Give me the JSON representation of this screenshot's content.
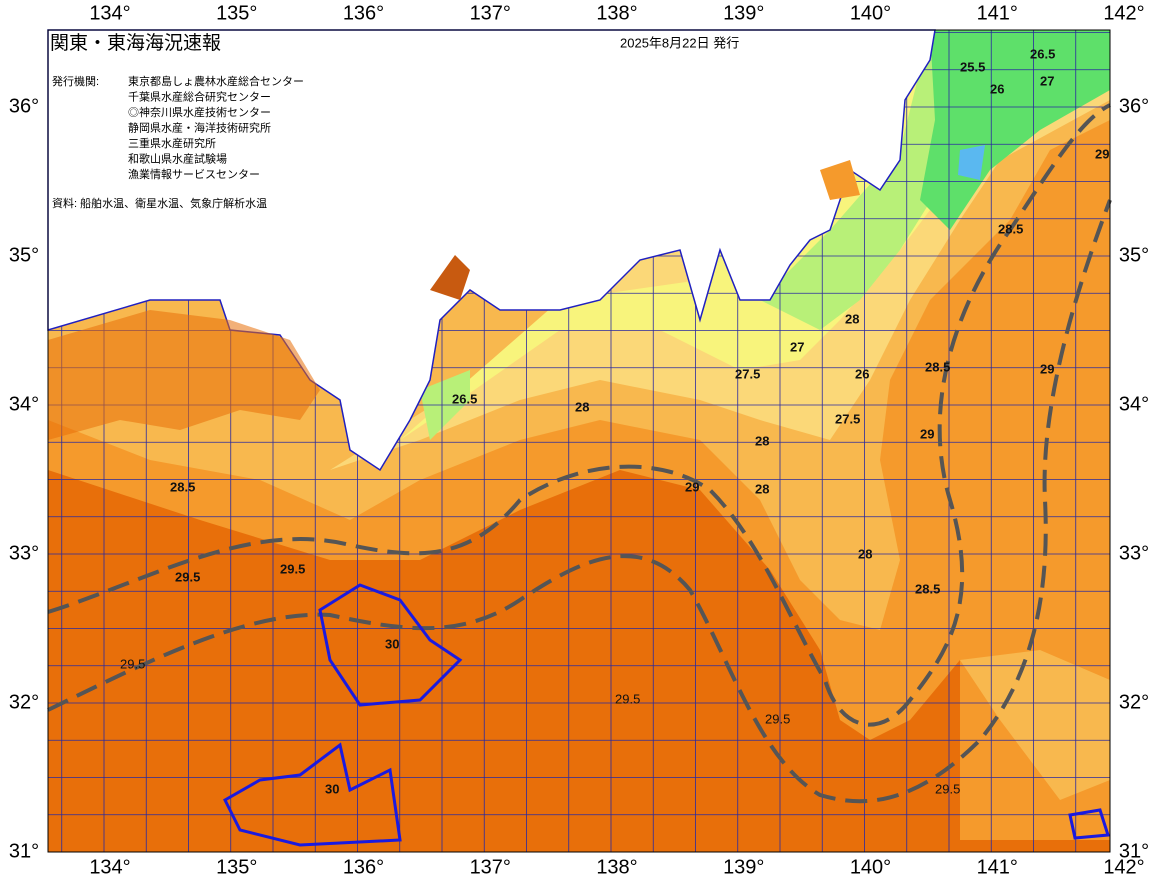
{
  "header": {
    "title": "関東・東海海況速報",
    "date": "2025年8月22日 発行"
  },
  "agencies": {
    "label": "発行機関:",
    "list": [
      "東京都島しょ農林水産総合センター",
      "千葉県水産総合研究センター",
      "◎神奈川県水産技術センター",
      "静岡県水産・海洋技術研究所",
      "三重県水産研究所",
      "和歌山県水産試験場",
      "漁業情報サービスセンター"
    ]
  },
  "source": "資料: 船舶水温、衛星水温、気象庁解析水温",
  "lon_labels": [
    "134°",
    "135°",
    "136°",
    "137°",
    "138°",
    "139°",
    "140°",
    "141°",
    "142°"
  ],
  "lat_labels": [
    "36°",
    "35°",
    "34°",
    "33°",
    "32°",
    "31°"
  ],
  "contour_labels": [
    "26.5",
    "25.5",
    "26",
    "27",
    "29",
    "28.5",
    "28",
    "27",
    "27.5",
    "26.5",
    "28",
    "26",
    "28.5",
    "29",
    "28",
    "27.5",
    "28",
    "29",
    "28.5",
    "29",
    "29.5",
    "29.5",
    "30",
    "30",
    "29.5",
    "29.5",
    "29.5",
    "29.5",
    "28",
    "28.5"
  ]
}
